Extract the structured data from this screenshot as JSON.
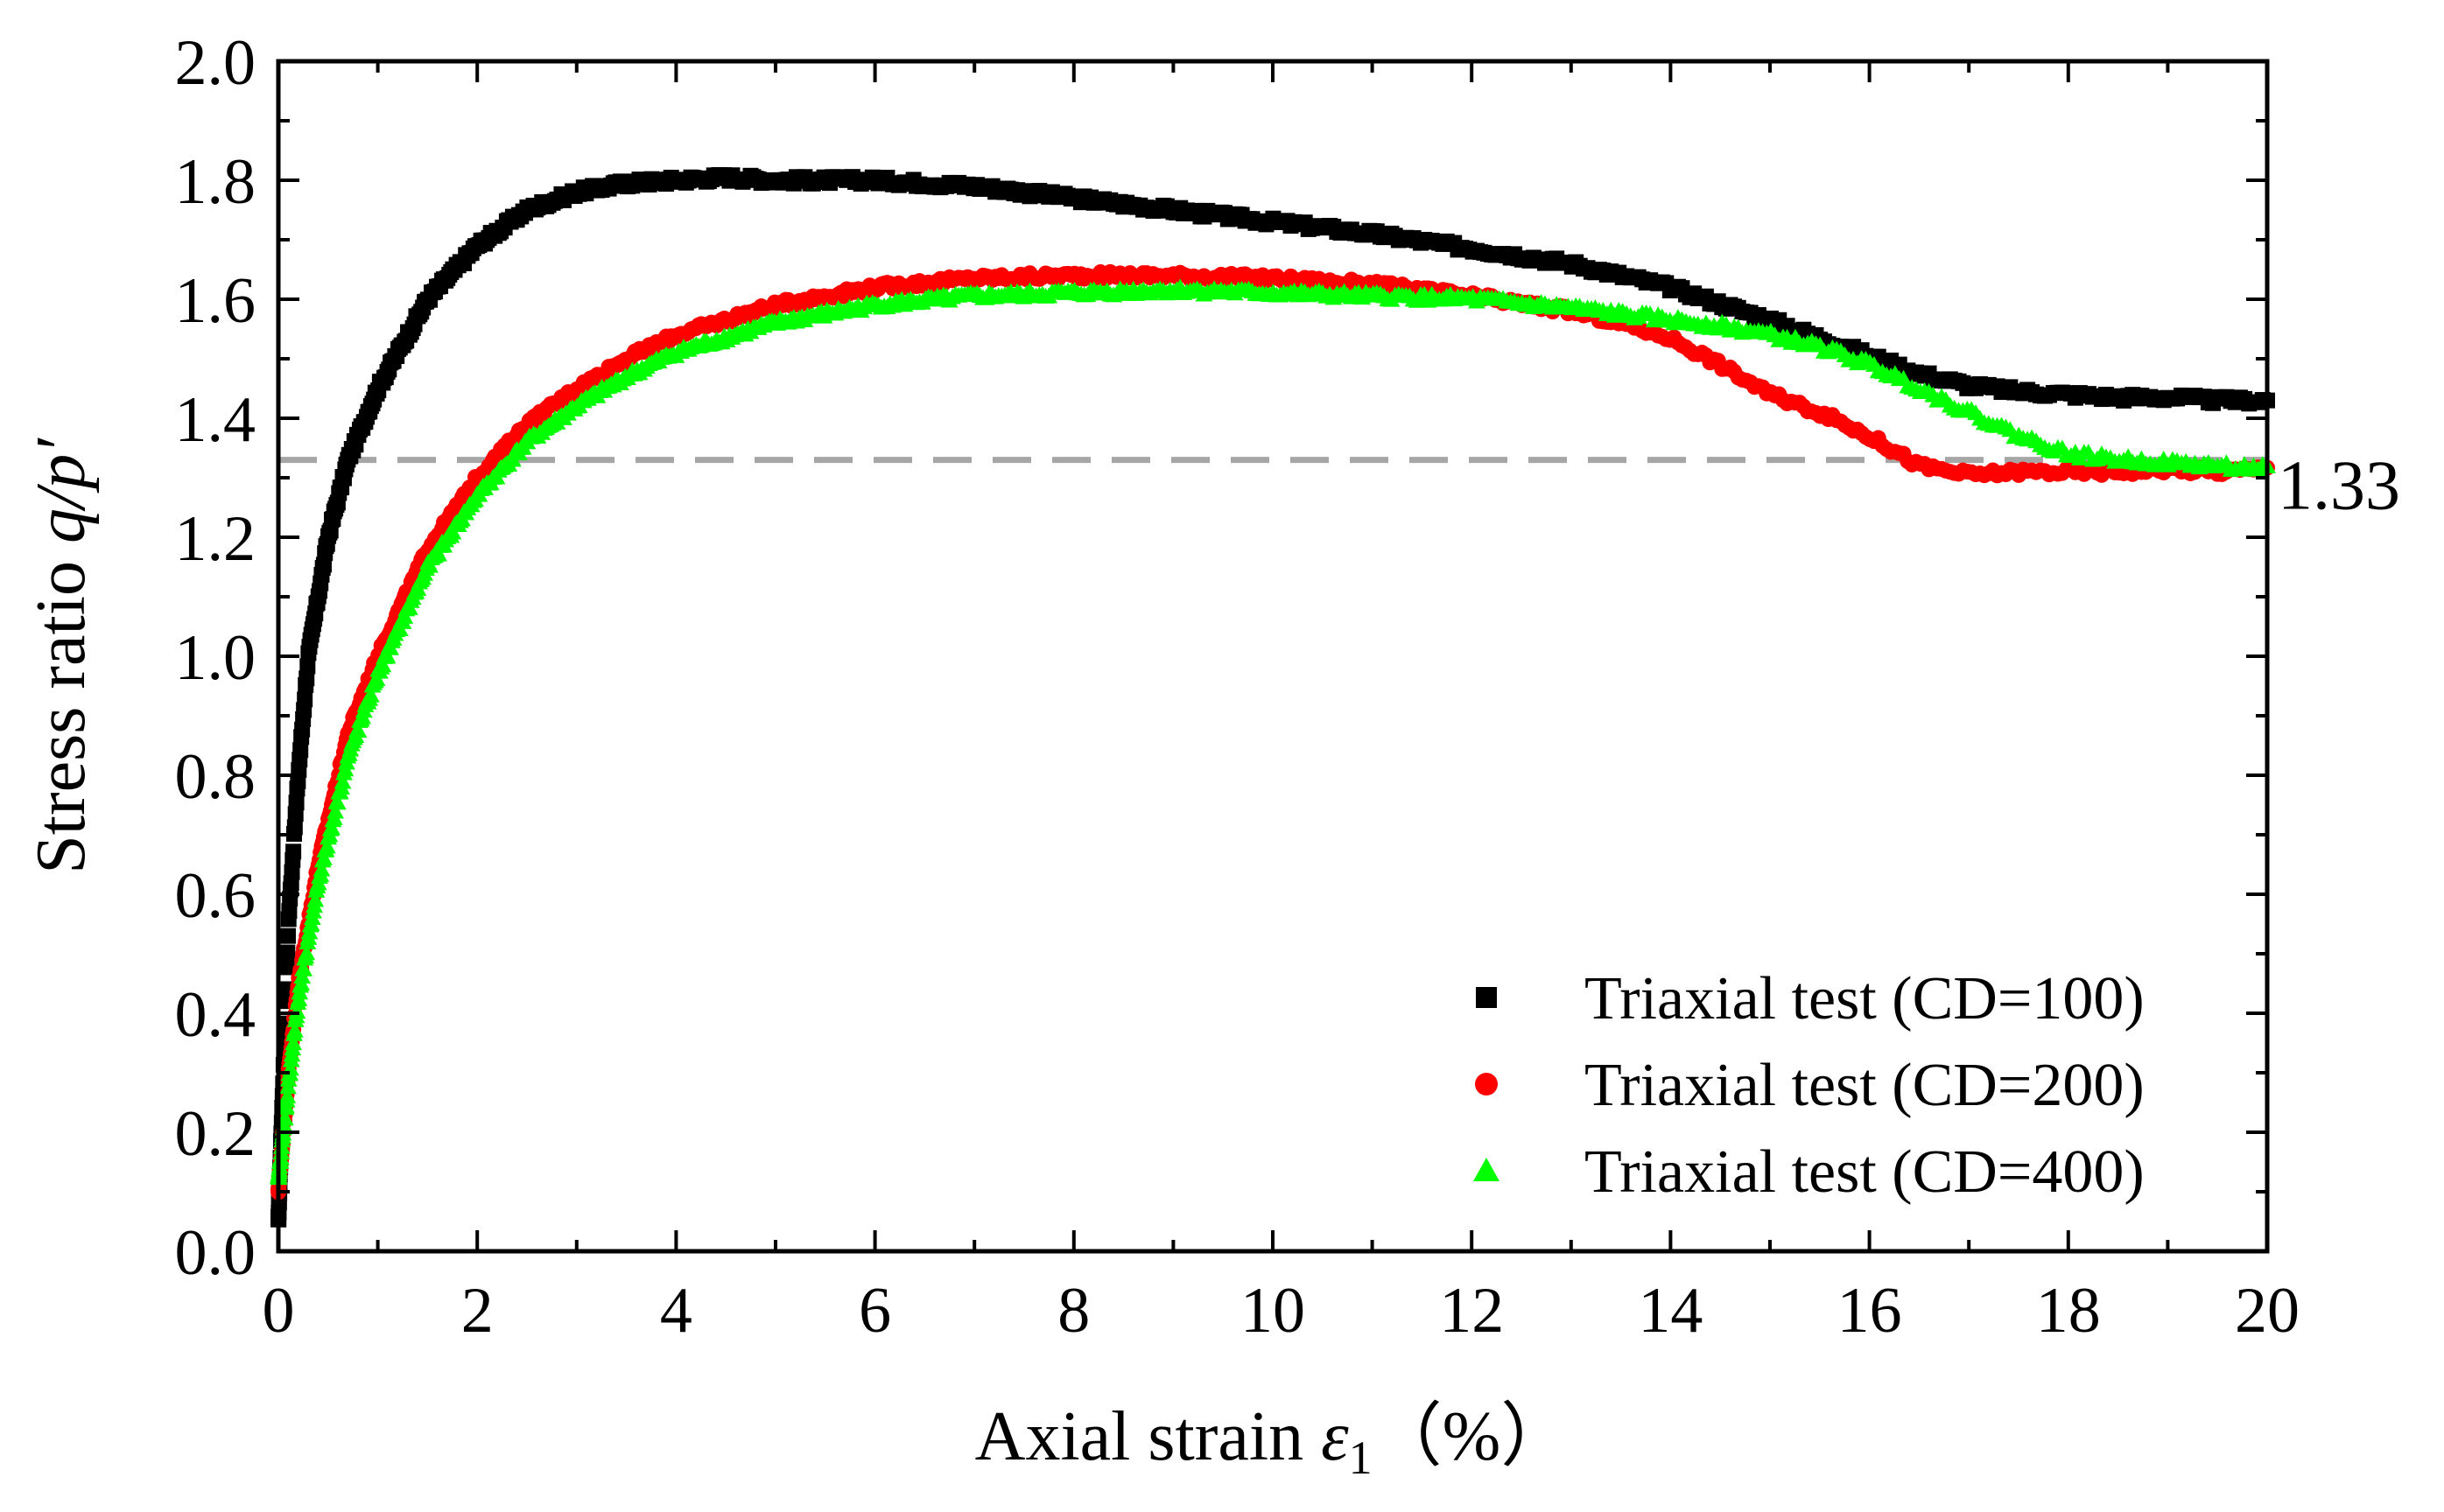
{
  "chart_data": {
    "type": "scatter",
    "title": "",
    "xlabel": {
      "prefix": "Axial strain ",
      "symbol": "ε",
      "subscript": "1",
      "unit": "（%）"
    },
    "ylabel": {
      "prefix": "Stress ratio ",
      "symbol": "q/p′"
    },
    "xlim": [
      0,
      20
    ],
    "ylim": [
      0,
      2.0
    ],
    "xticks": [
      "0",
      "2",
      "4",
      "6",
      "8",
      "10",
      "12",
      "14",
      "16",
      "18",
      "20"
    ],
    "yticks": [
      "0.0",
      "0.2",
      "0.4",
      "0.6",
      "0.8",
      "1.0",
      "1.2",
      "1.4",
      "1.6",
      "1.8",
      "2.0"
    ],
    "reference_line": {
      "y": 1.33,
      "label": "1.33",
      "color": "#a6a6a6",
      "style": "dashed"
    },
    "legend_position": "bottom-right",
    "series": [
      {
        "name": "Triaxial test (CD=100)",
        "color": "#000000",
        "marker": "square",
        "x": [
          0,
          0.1,
          0.2,
          0.3,
          0.5,
          0.7,
          1.0,
          1.5,
          2.0,
          2.5,
          3.0,
          3.5,
          4.0,
          4.5,
          5.0,
          5.5,
          6.0,
          7.0,
          8.0,
          9.0,
          10.0,
          11.0,
          12.0,
          13.0,
          14.0,
          15.0,
          15.5,
          16.0,
          16.5,
          17.0,
          17.5,
          18.0,
          18.5,
          19.0,
          19.5,
          20.0
        ],
        "y": [
          0.05,
          0.55,
          0.8,
          1.0,
          1.2,
          1.33,
          1.45,
          1.6,
          1.69,
          1.75,
          1.78,
          1.795,
          1.8,
          1.805,
          1.8,
          1.8,
          1.8,
          1.79,
          1.77,
          1.75,
          1.73,
          1.71,
          1.685,
          1.66,
          1.62,
          1.565,
          1.535,
          1.505,
          1.475,
          1.455,
          1.445,
          1.44,
          1.435,
          1.435,
          1.43,
          1.43
        ]
      },
      {
        "name": "Triaxial test (CD=200)",
        "color": "#ff0000",
        "marker": "circle",
        "x": [
          0,
          0.1,
          0.2,
          0.4,
          0.7,
          1.0,
          1.5,
          2.0,
          2.5,
          3.0,
          3.5,
          4.0,
          5.0,
          6.0,
          7.0,
          8.0,
          9.0,
          10.0,
          11.0,
          12.0,
          13.0,
          13.5,
          14.0,
          14.5,
          15.0,
          15.5,
          16.0,
          16.5,
          17.0,
          17.5,
          18.0,
          18.5,
          19.0,
          19.5,
          20.0
        ],
        "y": [
          0.1,
          0.3,
          0.45,
          0.65,
          0.87,
          1.0,
          1.18,
          1.3,
          1.39,
          1.45,
          1.5,
          1.54,
          1.59,
          1.62,
          1.635,
          1.64,
          1.64,
          1.635,
          1.625,
          1.605,
          1.58,
          1.56,
          1.535,
          1.49,
          1.44,
          1.41,
          1.37,
          1.32,
          1.305,
          1.31,
          1.31,
          1.31,
          1.315,
          1.31,
          1.315
        ]
      },
      {
        "name": "Triaxial test (CD=400)",
        "color": "#00ff00",
        "marker": "triangle",
        "x": [
          0,
          0.1,
          0.2,
          0.4,
          0.7,
          1.0,
          1.5,
          2.0,
          2.5,
          3.0,
          3.5,
          4.0,
          5.0,
          6.0,
          7.0,
          8.0,
          9.0,
          10.0,
          11.0,
          12.0,
          13.0,
          14.0,
          14.5,
          15.0,
          15.5,
          16.0,
          16.5,
          17.0,
          17.5,
          18.0,
          18.5,
          19.0,
          19.5,
          20.0
        ],
        "y": [
          0.12,
          0.28,
          0.42,
          0.62,
          0.83,
          0.97,
          1.15,
          1.27,
          1.36,
          1.42,
          1.47,
          1.51,
          1.56,
          1.59,
          1.605,
          1.61,
          1.615,
          1.61,
          1.605,
          1.6,
          1.585,
          1.565,
          1.555,
          1.54,
          1.52,
          1.49,
          1.45,
          1.41,
          1.37,
          1.34,
          1.33,
          1.325,
          1.32,
          1.315
        ]
      }
    ]
  }
}
